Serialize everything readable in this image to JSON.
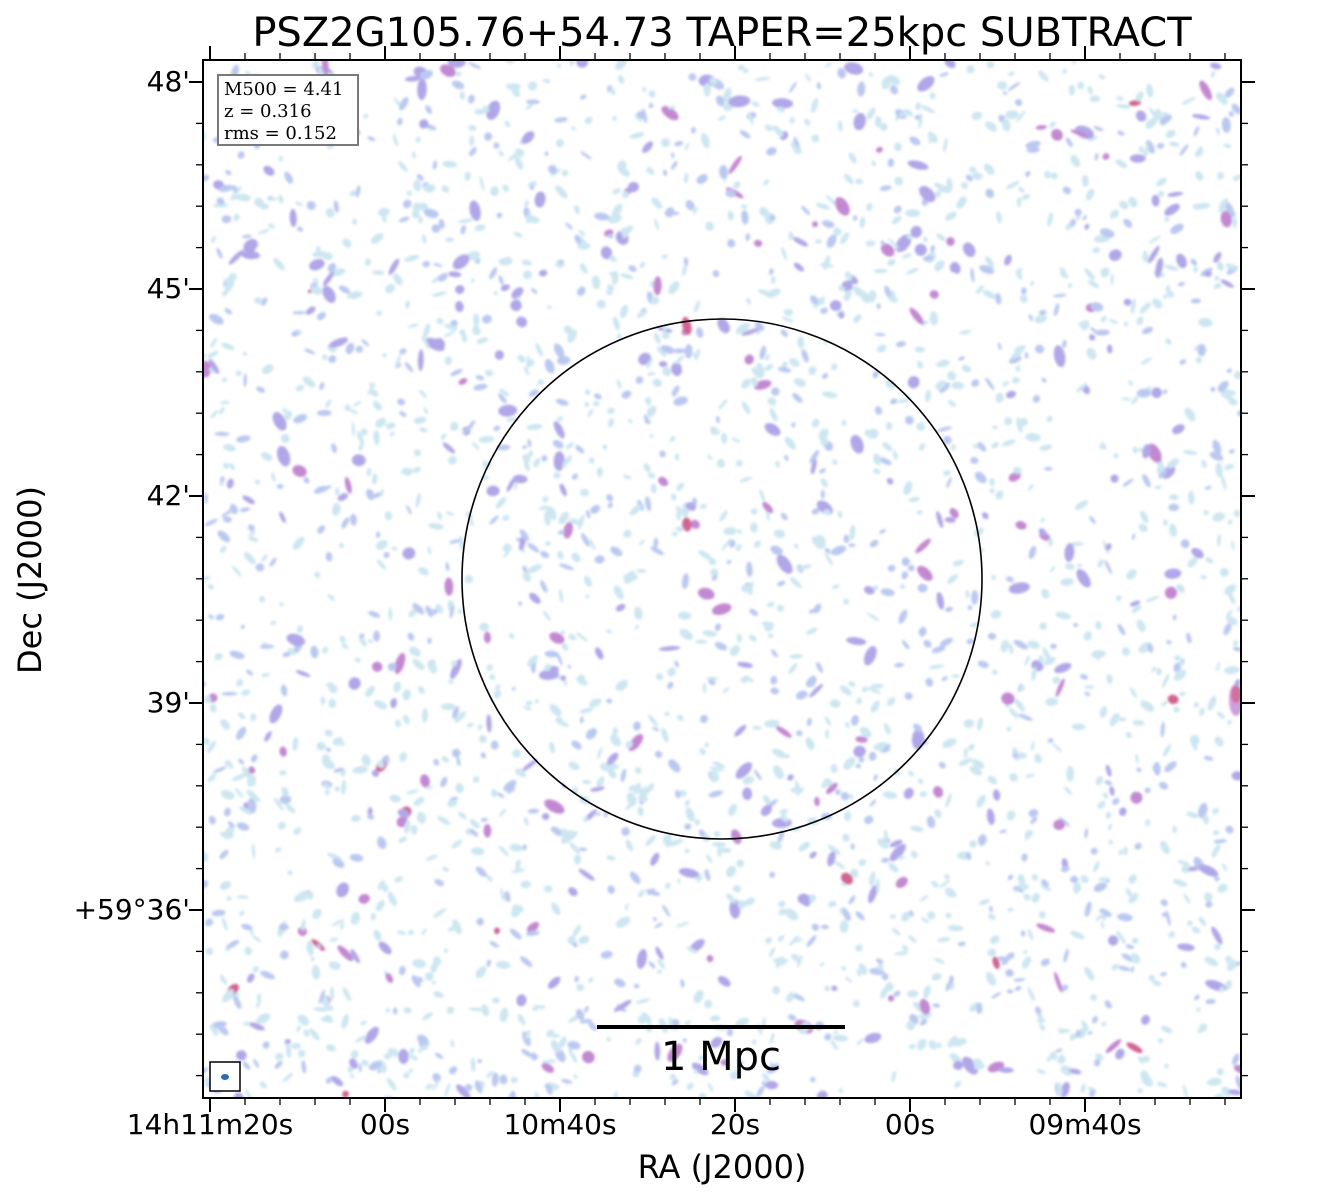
{
  "chart_data": {
    "type": "heatmap",
    "title": "PSZ2G105.76+54.73 TAPER=25kpc SUBTRACT",
    "xlabel": "RA (J2000)",
    "ylabel": "Dec (J2000)",
    "x_tick_labels": [
      "14h11m20s",
      "00s",
      "10m40s",
      "20s",
      "00s",
      "09m40s"
    ],
    "y_tick_labels": [
      "48'",
      "45'",
      "42'",
      "39'",
      "+59°36'"
    ],
    "info": {
      "m500": "M500 = 4.41",
      "z": "z = 0.316",
      "rms": "rms = 0.152"
    },
    "scalebar_label": "1 Mpc",
    "overlays": [
      "R500 circle centred on the cluster",
      "restoring beam ellipse (lower-left)",
      "1 Mpc scale bar"
    ],
    "colormap": [
      "#c4e2ee",
      "#aebfee",
      "#a397e4",
      "#b873c9",
      "#c9487e"
    ],
    "grid": false
  }
}
